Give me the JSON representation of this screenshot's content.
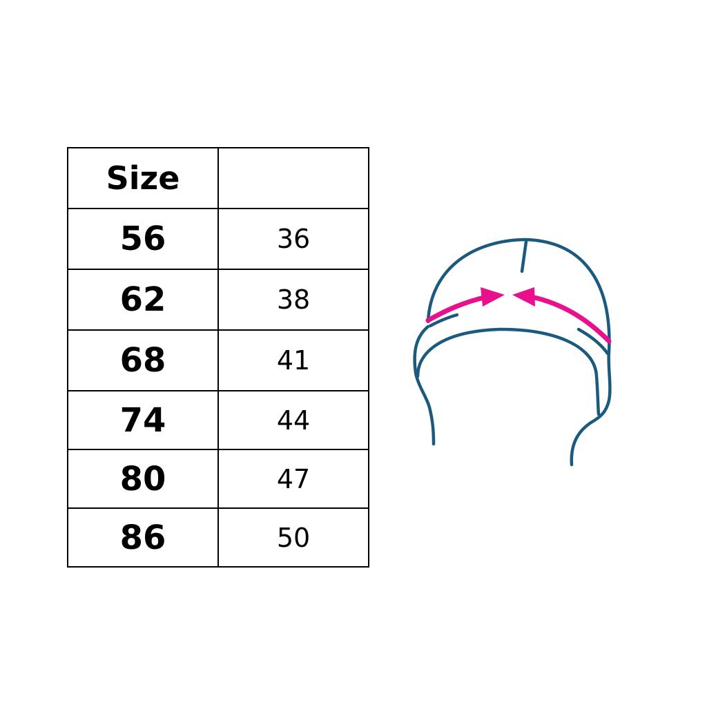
{
  "table": {
    "header": [
      "Size",
      ""
    ],
    "rows": [
      [
        "56",
        "36"
      ],
      [
        "62",
        "38"
      ],
      [
        "68",
        "41"
      ],
      [
        "74",
        "44"
      ],
      [
        "80",
        "47"
      ],
      [
        "86",
        "50"
      ]
    ]
  },
  "illustration": {
    "subject": "hat-head-circumference-icon",
    "outline_color": "#1b5a7e",
    "arrow_color": "#e8108c"
  }
}
